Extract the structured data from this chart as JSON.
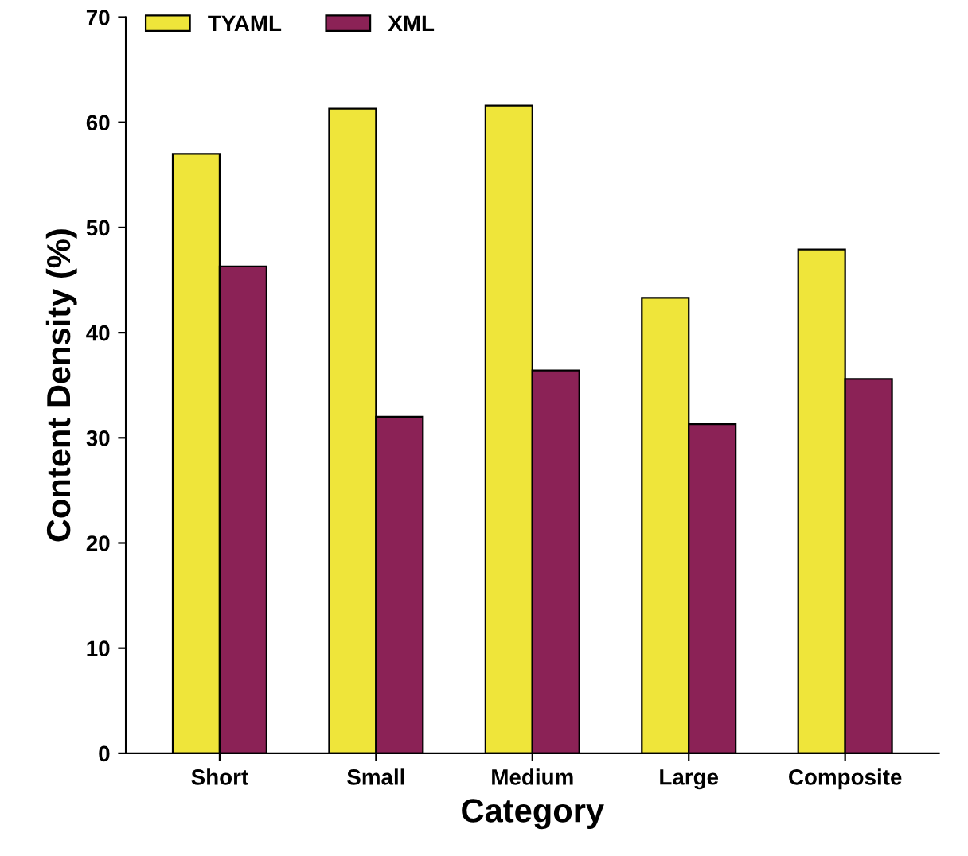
{
  "chart_data": {
    "type": "bar",
    "xlabel": "Category",
    "ylabel": "Content Density (%)",
    "categories": [
      "Short",
      "Small",
      "Medium",
      "Large",
      "Composite"
    ],
    "series": [
      {
        "name": "TYAML",
        "color": "#efe53a",
        "values": [
          57,
          61.3,
          61.6,
          43.3,
          47.9
        ]
      },
      {
        "name": "XML",
        "color": "#8b2256",
        "values": [
          46.3,
          32,
          36.4,
          31.3,
          35.6
        ]
      }
    ],
    "ylim": [
      0,
      70
    ],
    "yticks": [
      0,
      10,
      20,
      30,
      40,
      50,
      60,
      70
    ],
    "grid": false,
    "legend": "top left"
  }
}
